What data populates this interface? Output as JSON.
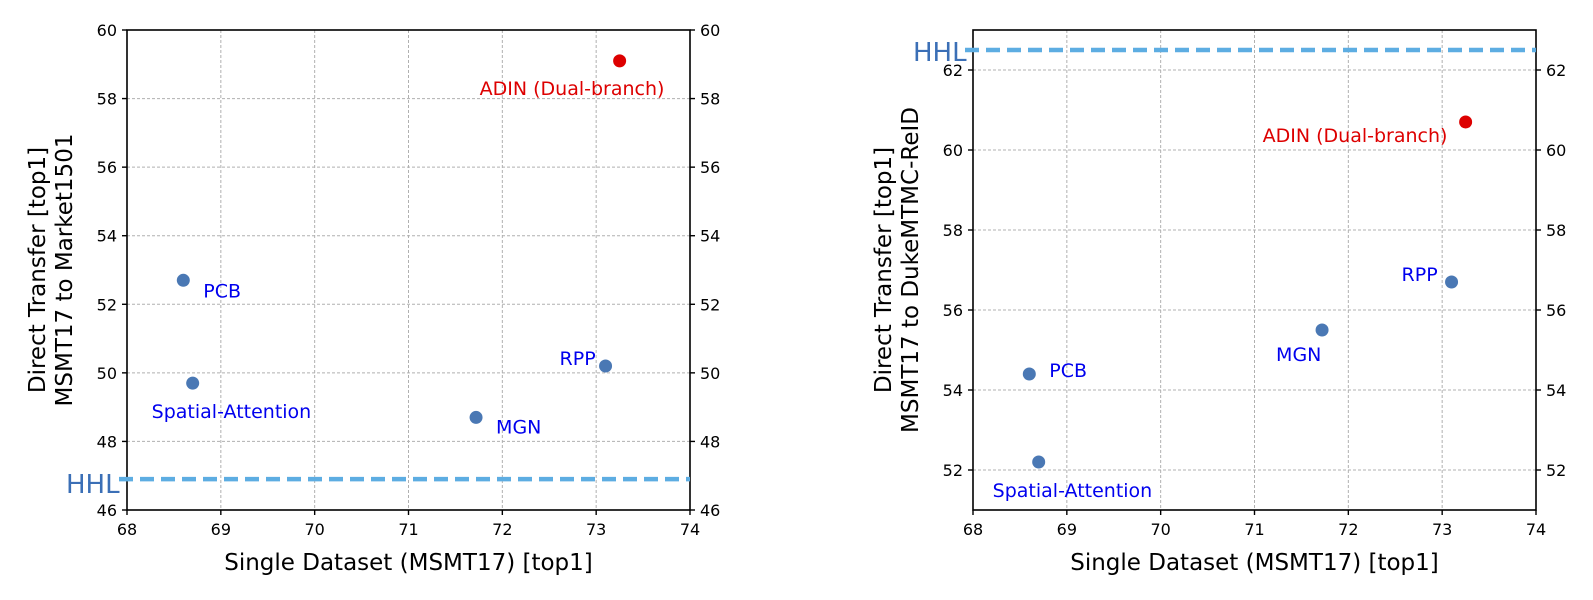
{
  "chart_data": [
    {
      "type": "scatter",
      "xlabel": "Single Dataset (MSMT17) [top1]",
      "ylabel": [
        "Direct Transfer [top1]",
        "MSMT17 to Market1501"
      ],
      "xlim": [
        68,
        74
      ],
      "ylim": [
        46,
        60
      ],
      "xticks": [
        "68",
        "69",
        "70",
        "71",
        "72",
        "73",
        "74"
      ],
      "yticks": [
        "46",
        "48",
        "50",
        "52",
        "54",
        "56",
        "58",
        "60"
      ],
      "grid": true,
      "secondary_y_axis": true,
      "points": [
        {
          "label": "ADIN (Dual-branch)",
          "x": 73.25,
          "y": 59.1,
          "color": "#dd0000",
          "label_color": "#dd0000"
        },
        {
          "label": "PCB",
          "x": 68.6,
          "y": 52.7,
          "color": "#4a78b4",
          "label_color": "#0000ee"
        },
        {
          "label": "Spatial-Attention",
          "x": 68.7,
          "y": 49.7,
          "color": "#4a78b4",
          "label_color": "#0000ee"
        },
        {
          "label": "MGN",
          "x": 71.72,
          "y": 48.7,
          "color": "#4a78b4",
          "label_color": "#0000ee"
        },
        {
          "label": "RPP",
          "x": 73.1,
          "y": 50.2,
          "color": "#4a78b4",
          "label_color": "#0000ee"
        }
      ],
      "reference_line": {
        "label": "HHL",
        "y": 46.9,
        "color": "#5dade2",
        "label_color": "#3b6fb6"
      }
    },
    {
      "type": "scatter",
      "xlabel": "Single Dataset (MSMT17) [top1]",
      "ylabel": [
        "Direct Transfer [top1]",
        "MSMT17 to DukeMTMC-ReID"
      ],
      "xlim": [
        68,
        74
      ],
      "ylim": [
        51,
        63
      ],
      "xticks": [
        "68",
        "69",
        "70",
        "71",
        "72",
        "73",
        "74"
      ],
      "yticks": [
        "52",
        "54",
        "56",
        "58",
        "60",
        "62"
      ],
      "grid": true,
      "secondary_y_axis": true,
      "points": [
        {
          "label": "ADIN (Dual-branch)",
          "x": 73.25,
          "y": 60.7,
          "color": "#dd0000",
          "label_color": "#dd0000"
        },
        {
          "label": "PCB",
          "x": 68.6,
          "y": 54.4,
          "color": "#4a78b4",
          "label_color": "#0000ee"
        },
        {
          "label": "Spatial-Attention",
          "x": 68.7,
          "y": 52.2,
          "color": "#4a78b4",
          "label_color": "#0000ee"
        },
        {
          "label": "MGN",
          "x": 71.72,
          "y": 55.5,
          "color": "#4a78b4",
          "label_color": "#0000ee"
        },
        {
          "label": "RPP",
          "x": 73.1,
          "y": 56.7,
          "color": "#4a78b4",
          "label_color": "#0000ee"
        }
      ],
      "reference_line": {
        "label": "HHL",
        "y": 62.5,
        "color": "#5dade2",
        "label_color": "#3b6fb6"
      }
    }
  ]
}
